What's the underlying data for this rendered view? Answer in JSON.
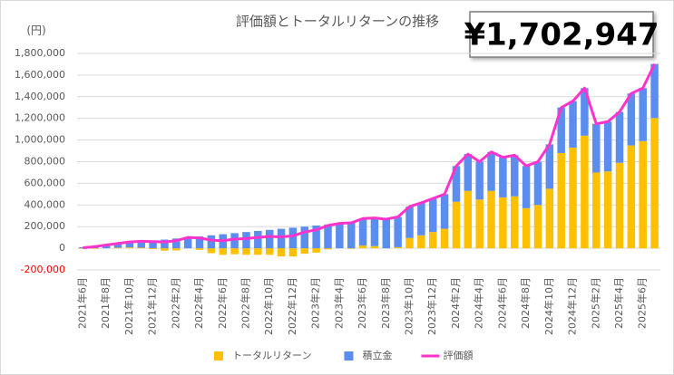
{
  "chart_data": {
    "type": "stacked-bar-line",
    "title": "評価額とトータルリターンの推移",
    "highlight": "¥1,702,947",
    "y_unit": "(円)",
    "categories": [
      "2021年6月",
      null,
      "2021年8月",
      null,
      "2021年10月",
      null,
      "2021年12月",
      null,
      "2022年2月",
      null,
      "2022年4月",
      null,
      "2022年6月",
      null,
      "2022年8月",
      null,
      "2022年10月",
      null,
      "2022年12月",
      null,
      "2023年2月",
      null,
      "2023年4月",
      null,
      "2023年6月",
      null,
      "2023年8月",
      null,
      "2023年10月",
      null,
      "2023年12月",
      null,
      "2024年2月",
      null,
      "2024年4月",
      null,
      "2024年6月",
      null,
      "2024年8月",
      null,
      "2024年10月",
      null,
      "2024年12月",
      null,
      "2025年2月",
      null,
      "2025年4月",
      null,
      "2025年6月",
      null
    ],
    "series": [
      {
        "name": "トータルリターン",
        "type": "bar",
        "color": "#ffc000",
        "values": [
          -5000,
          -5000,
          0,
          5000,
          8000,
          5000,
          -8000,
          -22000,
          -20000,
          0,
          -15000,
          -45000,
          -60000,
          -55000,
          -60000,
          -60000,
          -60000,
          -75000,
          -75000,
          -50000,
          -40000,
          -10000,
          0,
          -5000,
          25000,
          20000,
          -1000,
          10000,
          95000,
          120000,
          150000,
          180000,
          430000,
          530000,
          450000,
          530000,
          470000,
          480000,
          370000,
          400000,
          550000,
          880000,
          930000,
          1040000,
          700000,
          710000,
          790000,
          950000,
          990000,
          1202947
        ]
      },
      {
        "name": "積立金",
        "type": "bar",
        "color": "#5b8def",
        "values": [
          10000,
          20000,
          30000,
          40000,
          50000,
          60000,
          70000,
          80000,
          90000,
          100000,
          110000,
          120000,
          130000,
          140000,
          150000,
          160000,
          170000,
          180000,
          190000,
          200000,
          210000,
          220000,
          230000,
          240000,
          250000,
          260000,
          270000,
          280000,
          290000,
          300000,
          310000,
          320000,
          330000,
          340000,
          350000,
          360000,
          370000,
          380000,
          390000,
          400000,
          410000,
          420000,
          430000,
          440000,
          450000,
          460000,
          470000,
          480000,
          490000,
          500000
        ]
      },
      {
        "name": "評価額",
        "type": "line",
        "color": "#ff33cc",
        "values": [
          5000,
          15000,
          30000,
          45000,
          58000,
          65000,
          62000,
          58000,
          70000,
          100000,
          95000,
          75000,
          70000,
          85000,
          90000,
          100000,
          110000,
          105000,
          115000,
          150000,
          170000,
          210000,
          230000,
          235000,
          275000,
          280000,
          269000,
          290000,
          385000,
          420000,
          460000,
          500000,
          760000,
          870000,
          800000,
          890000,
          840000,
          860000,
          760000,
          800000,
          960000,
          1300000,
          1360000,
          1480000,
          1150000,
          1170000,
          1260000,
          1430000,
          1480000,
          1702947
        ]
      }
    ],
    "ylim": [
      -200000,
      1800000
    ],
    "yticks": [
      {
        "value": -200000,
        "label": "-200,000"
      },
      0,
      {
        "value": 200000,
        "label": "200,000"
      },
      {
        "value": 400000,
        "label": "400,000"
      },
      {
        "value": 600000,
        "label": "600,000"
      },
      {
        "value": 800000,
        "label": "800,000"
      },
      {
        "value": 1000000,
        "label": "1,000,000"
      },
      {
        "value": 1200000,
        "label": "1,200,000"
      },
      {
        "value": 1400000,
        "label": "1,400,000"
      },
      {
        "value": 1600000,
        "label": "1,600,000"
      },
      {
        "value": 1800000,
        "label": "1,800,000"
      }
    ],
    "negative_tick_color": "#ff0000",
    "grid": true,
    "legend": "bottom"
  }
}
